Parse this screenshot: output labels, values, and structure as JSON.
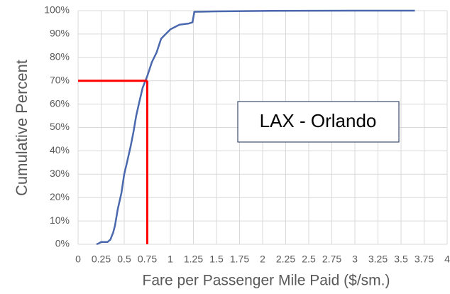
{
  "chart_data": {
    "type": "line",
    "x_label": "Fare per Passenger Mile Paid ($/sm.)",
    "y_label": "Cumulative Percent",
    "annotation": "LAX - Orlando",
    "x": [
      0.2,
      0.23,
      0.25,
      0.32,
      0.35,
      0.38,
      0.4,
      0.43,
      0.47,
      0.5,
      0.53,
      0.57,
      0.6,
      0.63,
      0.67,
      0.7,
      0.75,
      0.8,
      0.85,
      0.9,
      0.95,
      1.0,
      1.05,
      1.1,
      1.2,
      1.24,
      1.26,
      1.5,
      2,
      3,
      3.65
    ],
    "values": [
      0,
      0.5,
      1,
      1,
      2,
      5,
      8,
      15,
      22,
      30,
      35,
      42,
      48,
      55,
      62,
      67,
      72,
      78,
      82,
      88,
      90,
      92,
      93,
      94,
      94.5,
      95,
      99.5,
      99.7,
      99.9,
      100,
      100
    ],
    "color": "#4a68ad",
    "reference": {
      "x": 0.75,
      "y": 70,
      "color": "#ff0000"
    },
    "xlim": [
      0,
      4
    ],
    "ylim": [
      0,
      100
    ],
    "xticks": [
      0,
      0.25,
      0.5,
      0.75,
      1,
      1.25,
      1.5,
      1.75,
      2,
      2.25,
      2.5,
      2.75,
      3,
      3.25,
      3.5,
      3.75,
      4
    ],
    "yticks": [
      {
        "value": 0,
        "label": "0%"
      },
      {
        "value": 10,
        "label": "10%"
      },
      {
        "value": 20,
        "label": "20%"
      },
      {
        "value": 30,
        "label": "30%"
      },
      {
        "value": 40,
        "label": "40%"
      },
      {
        "value": 50,
        "label": "50%"
      },
      {
        "value": 60,
        "label": "60%"
      },
      {
        "value": 70,
        "label": "70%"
      },
      {
        "value": 80,
        "label": "80%"
      },
      {
        "value": 90,
        "label": "90%"
      },
      {
        "value": 100,
        "label": "100%"
      }
    ],
    "grid": true
  }
}
